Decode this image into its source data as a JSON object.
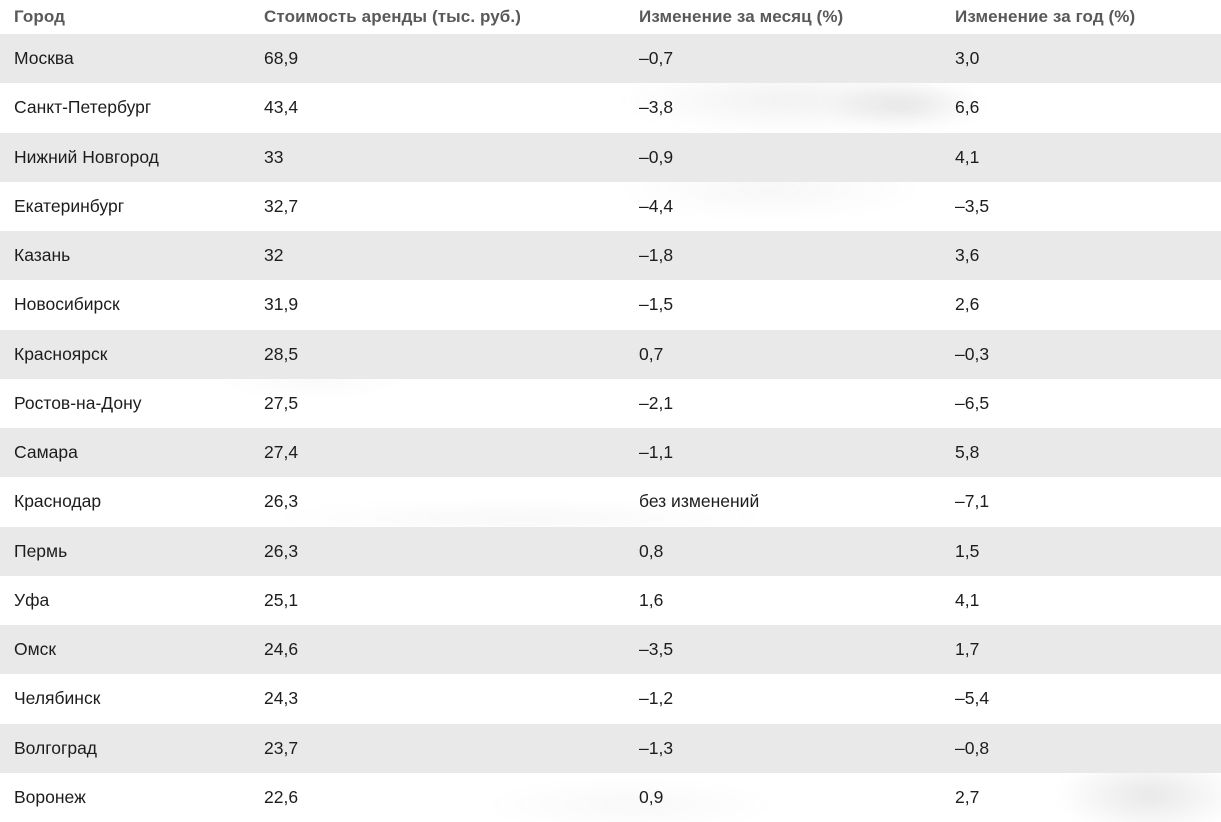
{
  "colors": {
    "stripe": "#e9e9e9",
    "header_text": "#595959",
    "body_text": "#1d1d1d",
    "background": "#ffffff"
  },
  "table": {
    "columns": [
      "Город",
      "Стоимость аренды (тыс. руб.)",
      "Изменение за месяц (%)",
      "Изменение за год (%)"
    ],
    "rows": [
      [
        "Москва",
        "68,9",
        "–0,7",
        "3,0"
      ],
      [
        "Санкт-Петербург",
        "43,4",
        "–3,8",
        "6,6"
      ],
      [
        "Нижний Новгород",
        "33",
        "–0,9",
        "4,1"
      ],
      [
        "Екатеринбург",
        "32,7",
        "–4,4",
        "–3,5"
      ],
      [
        "Казань",
        "32",
        "–1,8",
        "3,6"
      ],
      [
        "Новосибирск",
        "31,9",
        "–1,5",
        "2,6"
      ],
      [
        "Красноярск",
        "28,5",
        "0,7",
        "–0,3"
      ],
      [
        "Ростов-на-Дону",
        "27,5",
        "–2,1",
        "–6,5"
      ],
      [
        "Самара",
        "27,4",
        "–1,1",
        "5,8"
      ],
      [
        "Краснодар",
        "26,3",
        "без изменений",
        "–7,1"
      ],
      [
        "Пермь",
        "26,3",
        "0,8",
        "1,5"
      ],
      [
        "Уфа",
        "25,1",
        "1,6",
        "4,1"
      ],
      [
        "Омск",
        "24,6",
        "–3,5",
        "1,7"
      ],
      [
        "Челябинск",
        "24,3",
        "–1,2",
        "–5,4"
      ],
      [
        "Волгоград",
        "23,7",
        "–1,3",
        "–0,8"
      ],
      [
        "Воронеж",
        "22,6",
        "0,9",
        "2,7"
      ]
    ]
  },
  "chart_data": {
    "type": "table",
    "title": "",
    "columns": [
      "Город",
      "Стоимость аренды (тыс. руб.)",
      "Изменение за месяц (%)",
      "Изменение за год (%)"
    ],
    "cities": [
      "Москва",
      "Санкт-Петербург",
      "Нижний Новгород",
      "Екатеринбург",
      "Казань",
      "Новосибирск",
      "Красноярск",
      "Ростов-на-Дону",
      "Самара",
      "Краснодар",
      "Пермь",
      "Уфа",
      "Омск",
      "Челябинск",
      "Волгоград",
      "Воронеж"
    ],
    "rent_thousand_rub": [
      68.9,
      43.4,
      33,
      32.7,
      32,
      31.9,
      28.5,
      27.5,
      27.4,
      26.3,
      26.3,
      25.1,
      24.6,
      24.3,
      23.7,
      22.6
    ],
    "month_change_pct": [
      -0.7,
      -3.8,
      -0.9,
      -4.4,
      -1.8,
      -1.5,
      0.7,
      -2.1,
      -1.1,
      0,
      0.8,
      1.6,
      -3.5,
      -1.2,
      -1.3,
      0.9
    ],
    "year_change_pct": [
      3.0,
      6.6,
      4.1,
      -3.5,
      3.6,
      2.6,
      -0.3,
      -6.5,
      5.8,
      -7.1,
      1.5,
      4.1,
      1.7,
      -5.4,
      -0.8,
      2.7
    ],
    "notes": "month change for Краснодар shown as text 'без изменений'"
  }
}
